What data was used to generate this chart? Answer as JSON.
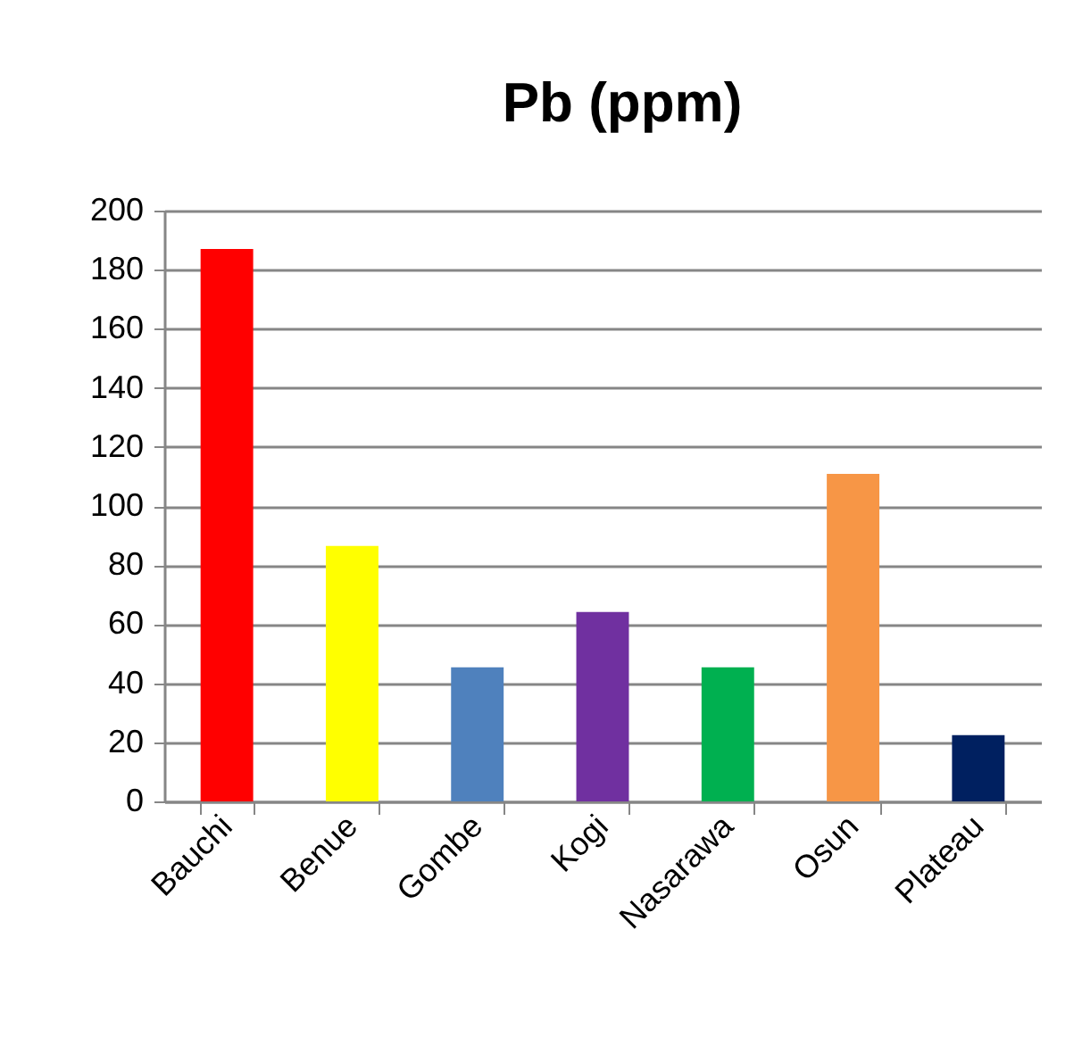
{
  "chart_data": {
    "type": "bar",
    "title": "Pb (ppm)",
    "categories": [
      "Bauchi",
      "Benue",
      "Gombe",
      "Kogi",
      "Nasarawa",
      "Osun",
      "Plateau"
    ],
    "values": [
      187,
      86.5,
      45.4,
      64.1,
      45.4,
      110.9,
      22.4
    ],
    "colors": [
      "#ff0000",
      "#ffff00",
      "#4f81bd",
      "#7030a0",
      "#00b050",
      "#f79646",
      "#002060"
    ],
    "ylim": [
      0,
      200
    ],
    "yticks": [
      0,
      20,
      40,
      60,
      80,
      100,
      120,
      140,
      160,
      180,
      200
    ],
    "grid": "y"
  }
}
